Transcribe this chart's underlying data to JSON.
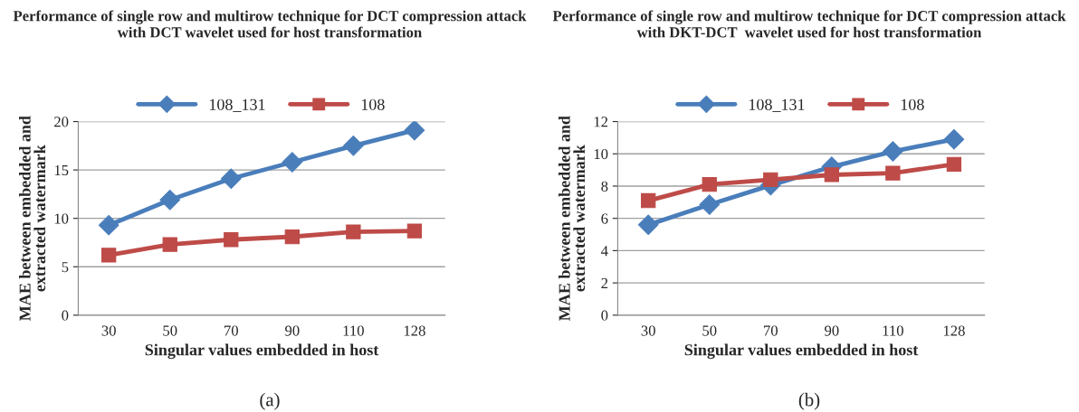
{
  "chart_data": [
    {
      "type": "line",
      "title": "Performance of single row and multirow technique for DCT compression attack with DCT wavelet used for host transformation",
      "xlabel": "Singular values embedded in host",
      "ylabel": "MAE between embedded and extracted watermark",
      "categories": [
        "30",
        "50",
        "70",
        "90",
        "110",
        "128"
      ],
      "series": [
        {
          "name": "108_131",
          "color": "#4a7ebb",
          "marker": "diamond",
          "values": [
            9.3,
            11.9,
            14.1,
            15.8,
            17.5,
            19.1
          ]
        },
        {
          "name": "108",
          "color": "#be4b48",
          "marker": "square",
          "values": [
            6.2,
            7.3,
            7.8,
            8.1,
            8.6,
            8.7
          ]
        }
      ],
      "ylim": [
        0,
        20
      ],
      "yticks": [
        0,
        5,
        10,
        15,
        20
      ],
      "grid": "y",
      "legend": "top",
      "annotations": [
        "(a)"
      ]
    },
    {
      "type": "line",
      "title": "Performance of single row and multirow technique for DCT compression attack with DKT-DCT  wavelet used for host transformation",
      "xlabel": "Singular values embedded in host",
      "ylabel": "MAE between embedded and extracted watermark",
      "categories": [
        "30",
        "50",
        "70",
        "90",
        "110",
        "128"
      ],
      "series": [
        {
          "name": "108_131",
          "color": "#4a7ebb",
          "marker": "diamond",
          "values": [
            5.6,
            6.85,
            8.05,
            9.2,
            10.15,
            10.9
          ]
        },
        {
          "name": "108",
          "color": "#be4b48",
          "marker": "square",
          "values": [
            7.1,
            8.1,
            8.4,
            8.7,
            8.8,
            9.35
          ]
        }
      ],
      "ylim": [
        0,
        12
      ],
      "yticks": [
        0,
        2,
        4,
        6,
        8,
        10,
        12
      ],
      "grid": "y",
      "legend": "top",
      "annotations": [
        "(b)"
      ]
    }
  ]
}
